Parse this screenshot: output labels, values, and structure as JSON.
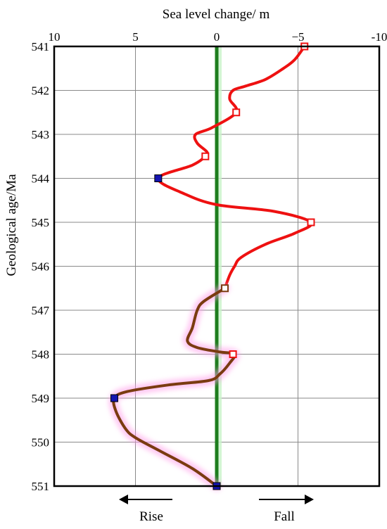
{
  "chart_data": {
    "type": "line",
    "title": "",
    "xlabel": "Sea level change/ m",
    "ylabel": "Geological age/Ma",
    "x_reversed": true,
    "xlim": [
      10,
      -10
    ],
    "ylim": [
      541,
      551
    ],
    "x_ticks": [
      {
        "value": 10,
        "label": "10"
      },
      {
        "value": 5,
        "label": "5"
      },
      {
        "value": 0,
        "label": "0"
      },
      {
        "value": -5,
        "label": "−5"
      },
      {
        "value": -10,
        "label": "-10"
      }
    ],
    "y_ticks": [
      {
        "value": 541,
        "label": "541"
      },
      {
        "value": 542,
        "label": "542"
      },
      {
        "value": 543,
        "label": "543"
      },
      {
        "value": 544,
        "label": "544"
      },
      {
        "value": 545,
        "label": "545"
      },
      {
        "value": 546,
        "label": "546"
      },
      {
        "value": 547,
        "label": "547"
      },
      {
        "value": 548,
        "label": "548"
      },
      {
        "value": 549,
        "label": "549"
      },
      {
        "value": 550,
        "label": "550"
      },
      {
        "value": 551,
        "label": "551"
      }
    ],
    "grid": true,
    "reference_line": {
      "x": 0,
      "color": "#1e7d1e"
    },
    "series": [
      {
        "color": "#ee1111",
        "points": [
          [
            -5.4,
            541.0
          ],
          [
            -4.8,
            541.3
          ],
          [
            -4.1,
            541.5
          ],
          [
            -3.0,
            541.75
          ],
          [
            -1.8,
            541.9
          ],
          [
            -1.0,
            542.0
          ],
          [
            -0.8,
            542.2
          ],
          [
            -1.2,
            542.5
          ],
          [
            0.3,
            542.85
          ],
          [
            1.3,
            543.0
          ],
          [
            1.2,
            543.2
          ],
          [
            0.6,
            543.4
          ],
          [
            0.7,
            543.5
          ],
          [
            1.5,
            543.7
          ],
          [
            3.6,
            544.0
          ],
          [
            2.0,
            544.35
          ],
          [
            0.0,
            544.6
          ],
          [
            -3.5,
            544.75
          ],
          [
            -5.8,
            545.0
          ],
          [
            -4.8,
            545.25
          ],
          [
            -3.0,
            545.5
          ],
          [
            -1.5,
            545.8
          ],
          [
            -1.1,
            546.0
          ],
          [
            -0.8,
            546.2
          ],
          [
            -0.5,
            546.5
          ]
        ]
      },
      {
        "color": "#7a3b10",
        "points": [
          [
            -0.5,
            546.5
          ],
          [
            0.8,
            546.8
          ],
          [
            1.2,
            547.0
          ],
          [
            1.5,
            547.4
          ],
          [
            1.8,
            547.7
          ],
          [
            1.2,
            547.85
          ],
          [
            -0.2,
            547.95
          ],
          [
            -1.1,
            548.0
          ],
          [
            -0.8,
            548.2
          ],
          [
            -0.2,
            548.45
          ],
          [
            0.5,
            548.6
          ],
          [
            3.0,
            548.7
          ],
          [
            5.5,
            548.85
          ],
          [
            6.3,
            549.0
          ],
          [
            6.2,
            549.3
          ],
          [
            5.6,
            549.7
          ],
          [
            5.0,
            549.9
          ],
          [
            3.5,
            550.2
          ],
          [
            1.5,
            550.6
          ],
          [
            0.0,
            551.0
          ]
        ]
      }
    ],
    "markers": [
      {
        "x": -5.4,
        "y": 541.0,
        "style": "open",
        "color": "#ee1111"
      },
      {
        "x": -1.2,
        "y": 542.5,
        "style": "open",
        "color": "#ee1111"
      },
      {
        "x": 0.7,
        "y": 543.5,
        "style": "open",
        "color": "#ee1111"
      },
      {
        "x": 3.6,
        "y": 544.0,
        "style": "filled",
        "color": "#1515b0"
      },
      {
        "x": -5.8,
        "y": 545.0,
        "style": "open",
        "color": "#ee1111"
      },
      {
        "x": -0.5,
        "y": 546.5,
        "style": "open",
        "color": "#7a3b10"
      },
      {
        "x": -1.0,
        "y": 548.0,
        "style": "open",
        "color": "#ee1111"
      },
      {
        "x": 6.3,
        "y": 549.0,
        "style": "filled",
        "color": "#1515b0"
      },
      {
        "x": 0.0,
        "y": 551.0,
        "style": "filled",
        "color": "#1515b0"
      }
    ],
    "annotations": {
      "rise": "Rise",
      "fall": "Fall"
    }
  }
}
